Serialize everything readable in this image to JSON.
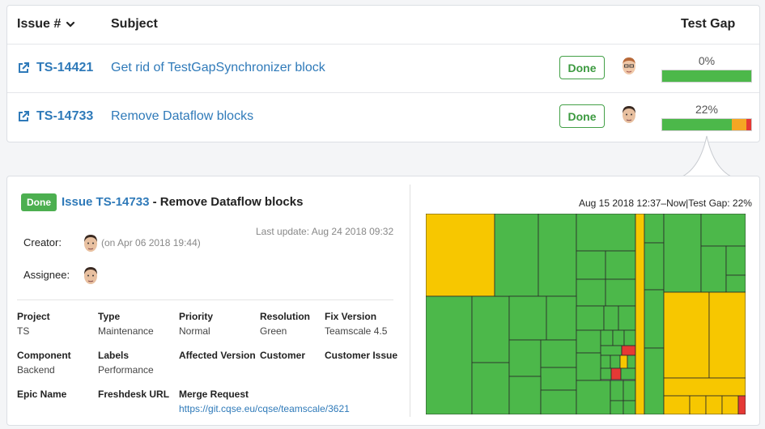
{
  "table": {
    "headers": {
      "issue": "Issue #",
      "subject": "Subject",
      "test_gap": "Test Gap"
    },
    "rows": [
      {
        "id": "TS-14421",
        "subject": "Get rid of TestGapSynchronizer block",
        "status": "Done",
        "gap_pct_label": "0%",
        "gap_fractions": {
          "green": 1.0,
          "yellow": 0.0,
          "red": 0.0
        }
      },
      {
        "id": "TS-14733",
        "subject": "Remove Dataflow blocks",
        "status": "Done",
        "gap_pct_label": "22%",
        "gap_fractions": {
          "green": 0.78,
          "yellow": 0.17,
          "red": 0.05
        }
      }
    ]
  },
  "detail": {
    "status": "Done",
    "issue_prefix": "Issue ",
    "issue_id": "TS-14733",
    "issue_subject": " - Remove Dataflow blocks",
    "last_update": "Last update: Aug 24 2018 09:32",
    "creator_label": "Creator:",
    "creator_note": "(on Apr 06 2018 19:44)",
    "assignee_label": "Assignee:",
    "fields": [
      {
        "label": "Project",
        "value": "TS"
      },
      {
        "label": "Type",
        "value": "Maintenance"
      },
      {
        "label": "Priority",
        "value": "Normal"
      },
      {
        "label": "Resolution",
        "value": "Green"
      },
      {
        "label": "Fix Version",
        "value": "Teamscale 4.5"
      },
      {
        "label": "Component",
        "value": "Backend"
      },
      {
        "label": "Labels",
        "value": "Performance"
      },
      {
        "label": "Affected Version",
        "value": ""
      },
      {
        "label": "Customer",
        "value": ""
      },
      {
        "label": "Customer Issue",
        "value": ""
      },
      {
        "label": "Epic Name",
        "value": ""
      },
      {
        "label": "Freshdesk URL",
        "value": ""
      },
      {
        "label": "Merge Request",
        "value": "https://git.cqse.eu/cqse/teamscale/3621"
      }
    ],
    "test_gap_header": "Aug 15 2018 12:37–Now|Test Gap: 22%"
  },
  "colors": {
    "green": "#4cb84a",
    "yellow": "#f7c700",
    "orange": "#f5a623",
    "red": "#e53935",
    "link": "#2f7ab9",
    "done_badge": "#4caf50"
  },
  "icons": [
    "chevron-down-icon",
    "external-link-icon",
    "user-avatar"
  ]
}
